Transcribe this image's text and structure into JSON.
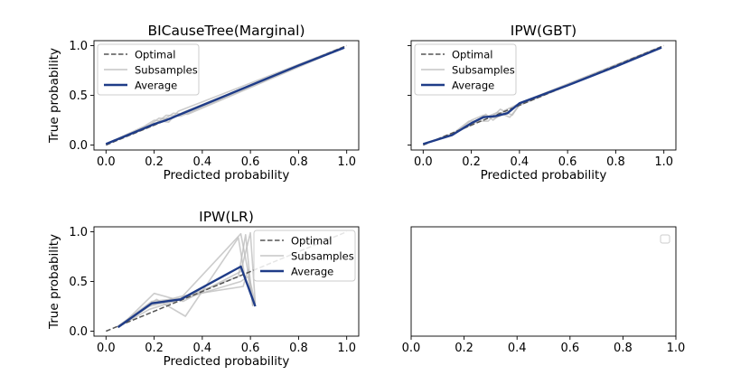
{
  "chart_data": [
    {
      "type": "line",
      "title": "BICauseTree(Marginal)",
      "xlabel": "Predicted probability",
      "ylabel": "True probability",
      "xlim": [
        -0.05,
        1.05
      ],
      "ylim": [
        -0.05,
        1.05
      ],
      "xticks": [
        "0.0",
        "0.2",
        "0.4",
        "0.6",
        "0.8",
        "1.0"
      ],
      "yticks": [
        "0.0",
        "0.5",
        "1.0"
      ],
      "legend": {
        "placement": "top-left",
        "entries": [
          "Optimal",
          "Subsamples",
          "Average"
        ]
      },
      "series": [
        {
          "name": "Optimal",
          "style": "dashed",
          "color": "#555555",
          "x": [
            0,
            1
          ],
          "y": [
            0,
            1
          ]
        },
        {
          "name": "Subsamples",
          "style": "thin",
          "color": "#bbbbbb",
          "lines": [
            {
              "x": [
                0.0,
                0.18,
                0.22,
                0.27,
                0.32,
                0.99
              ],
              "y": [
                0.01,
                0.2,
                0.27,
                0.26,
                0.33,
                0.98
              ]
            },
            {
              "x": [
                0.0,
                0.17,
                0.21,
                0.25,
                0.31,
                0.99
              ],
              "y": [
                0.01,
                0.17,
                0.22,
                0.3,
                0.29,
                0.99
              ]
            },
            {
              "x": [
                0.0,
                0.19,
                0.23,
                0.28,
                0.34,
                0.99
              ],
              "y": [
                0.01,
                0.21,
                0.24,
                0.32,
                0.31,
                0.98
              ]
            },
            {
              "x": [
                0.0,
                0.16,
                0.2,
                0.26,
                0.3,
                0.99
              ],
              "y": [
                0.01,
                0.19,
                0.25,
                0.23,
                0.34,
                0.99
              ]
            }
          ]
        },
        {
          "name": "Average",
          "style": "solid",
          "color": "#1f3c88",
          "x": [
            0.0,
            0.2,
            0.25,
            0.3,
            0.4,
            0.6,
            0.8,
            0.99
          ],
          "y": [
            0.01,
            0.21,
            0.25,
            0.3,
            0.4,
            0.6,
            0.8,
            0.98
          ]
        }
      ]
    },
    {
      "type": "line",
      "title": "IPW(GBT)",
      "xlabel": "Predicted probability",
      "ylabel": "",
      "xlim": [
        -0.05,
        1.05
      ],
      "ylim": [
        -0.05,
        1.05
      ],
      "xticks": [
        "0.0",
        "0.2",
        "0.4",
        "0.6",
        "0.8",
        "1.0"
      ],
      "yticks": [],
      "legend": {
        "placement": "top-left",
        "entries": [
          "Optimal",
          "Subsamples",
          "Average"
        ]
      },
      "series": [
        {
          "name": "Optimal",
          "style": "dashed",
          "color": "#555555",
          "x": [
            0,
            1
          ],
          "y": [
            0,
            1
          ]
        },
        {
          "name": "Subsamples",
          "style": "thin",
          "color": "#bbbbbb",
          "lines": [
            {
              "x": [
                0.0,
                0.12,
                0.2,
                0.25,
                0.3,
                0.35,
                0.4,
                0.99
              ],
              "y": [
                0.01,
                0.1,
                0.25,
                0.3,
                0.27,
                0.33,
                0.42,
                0.99
              ]
            },
            {
              "x": [
                0.0,
                0.12,
                0.2,
                0.24,
                0.31,
                0.36,
                0.4,
                0.99
              ],
              "y": [
                0.01,
                0.11,
                0.2,
                0.26,
                0.33,
                0.28,
                0.4,
                0.98
              ]
            },
            {
              "x": [
                0.0,
                0.13,
                0.21,
                0.26,
                0.29,
                0.34,
                0.41,
                0.99
              ],
              "y": [
                0.01,
                0.12,
                0.22,
                0.31,
                0.25,
                0.35,
                0.43,
                0.99
              ]
            },
            {
              "x": [
                0.0,
                0.11,
                0.19,
                0.27,
                0.32,
                0.37,
                0.4,
                0.99
              ],
              "y": [
                0.01,
                0.09,
                0.24,
                0.24,
                0.36,
                0.3,
                0.41,
                0.98
              ]
            }
          ]
        },
        {
          "name": "Average",
          "style": "solid",
          "color": "#1f3c88",
          "x": [
            0.0,
            0.12,
            0.2,
            0.25,
            0.3,
            0.35,
            0.4,
            0.6,
            0.8,
            0.99
          ],
          "y": [
            0.01,
            0.1,
            0.22,
            0.28,
            0.29,
            0.32,
            0.42,
            0.6,
            0.79,
            0.98
          ]
        }
      ]
    },
    {
      "type": "line",
      "title": "IPW(LR)",
      "xlabel": "Predicted probability",
      "ylabel": "True probability",
      "xlim": [
        -0.05,
        1.05
      ],
      "ylim": [
        -0.05,
        1.05
      ],
      "xticks": [
        "0.0",
        "0.2",
        "0.4",
        "0.6",
        "0.8",
        "1.0"
      ],
      "yticks": [
        "0.0",
        "0.5",
        "1.0"
      ],
      "legend": {
        "placement": "top-right",
        "entries": [
          "Optimal",
          "Subsamples",
          "Average"
        ]
      },
      "series": [
        {
          "name": "Optimal",
          "style": "dashed",
          "color": "#555555",
          "x": [
            0,
            1
          ],
          "y": [
            0,
            1
          ]
        },
        {
          "name": "Subsamples",
          "style": "thin",
          "color": "#bbbbbb",
          "lines": [
            {
              "x": [
                0.05,
                0.19,
                0.31,
                0.56,
                0.59,
                0.62
              ],
              "y": [
                0.05,
                0.3,
                0.33,
                0.98,
                0.6,
                0.27
              ]
            },
            {
              "x": [
                0.05,
                0.18,
                0.3,
                0.55,
                0.58,
                0.61
              ],
              "y": [
                0.04,
                0.25,
                0.32,
                0.55,
                0.97,
                0.25
              ]
            },
            {
              "x": [
                0.06,
                0.2,
                0.32,
                0.56,
                0.6,
                0.62
              ],
              "y": [
                0.05,
                0.38,
                0.3,
                0.6,
                0.99,
                0.28
              ]
            },
            {
              "x": [
                0.05,
                0.19,
                0.31,
                0.57,
                0.59,
                0.61
              ],
              "y": [
                0.05,
                0.27,
                0.35,
                0.45,
                0.62,
                0.26
              ]
            },
            {
              "x": [
                0.05,
                0.21,
                0.33,
                0.55,
                0.58,
                0.62
              ],
              "y": [
                0.05,
                0.32,
                0.15,
                0.94,
                0.5,
                0.29
              ]
            },
            {
              "x": [
                0.05,
                0.18,
                0.3,
                0.56,
                0.59,
                0.61
              ],
              "y": [
                0.04,
                0.22,
                0.31,
                0.5,
                0.55,
                0.27
              ]
            }
          ]
        },
        {
          "name": "Average",
          "style": "solid",
          "color": "#1f3c88",
          "x": [
            0.05,
            0.19,
            0.31,
            0.56,
            0.62
          ],
          "y": [
            0.04,
            0.28,
            0.32,
            0.65,
            0.25
          ]
        }
      ]
    },
    {
      "type": "line",
      "title": "",
      "xlabel": "",
      "ylabel": "",
      "xlim": [
        0.0,
        1.0
      ],
      "ylim": [
        0.0,
        1.0
      ],
      "xticks": [
        "0.0",
        "0.2",
        "0.4",
        "0.6",
        "0.8",
        "1.0"
      ],
      "yticks": [],
      "legend": {
        "placement": "top-right",
        "entries": []
      },
      "series": []
    }
  ]
}
